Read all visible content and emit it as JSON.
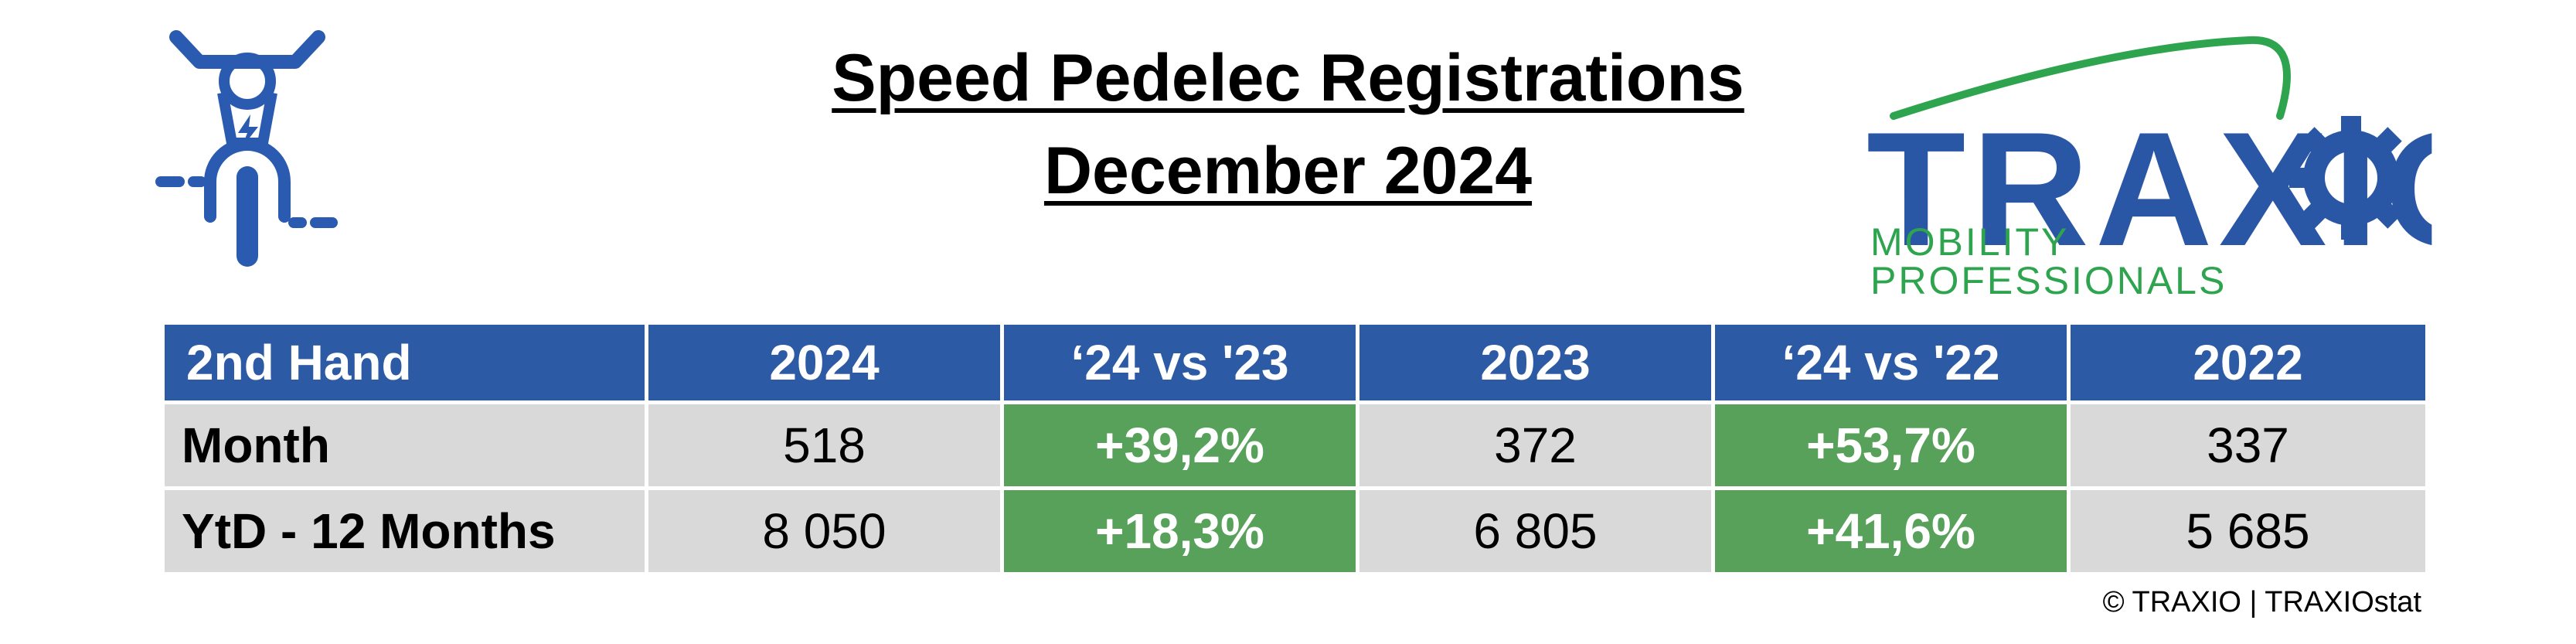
{
  "title": {
    "line1": "Speed Pedelec Registrations",
    "line2": "December 2024"
  },
  "icons": {
    "left": "speed-pedelec-moped-icon",
    "logo": "traxio-gear-logo"
  },
  "logo": {
    "name": "TRAXIO",
    "tagline": "MOBILITY PROFESSIONALS",
    "colors": {
      "blue": "#2a56a6",
      "green": "#2ea44f"
    }
  },
  "colors": {
    "header_bg": "#2d5aa4",
    "cell_bg": "#d9d9d9",
    "delta_bg": "#57a15b",
    "icon_blue": "#2a5bb0"
  },
  "table": {
    "headers": [
      "2nd Hand",
      "2024",
      "‘24 vs '23",
      "2023",
      "‘24 vs '22",
      "2022"
    ],
    "rows": [
      {
        "label": "Month",
        "v2024": "518",
        "d23": "+39,2%",
        "v2023": "372",
        "d22": "+53,7%",
        "v2022": "337"
      },
      {
        "label": "YtD - 12 Months",
        "v2024": "8 050",
        "d23": "+18,3%",
        "v2023": "6 805",
        "d22": "+41,6%",
        "v2022": "5 685"
      }
    ]
  },
  "footer": "© TRAXIO | TRAXIOstat"
}
